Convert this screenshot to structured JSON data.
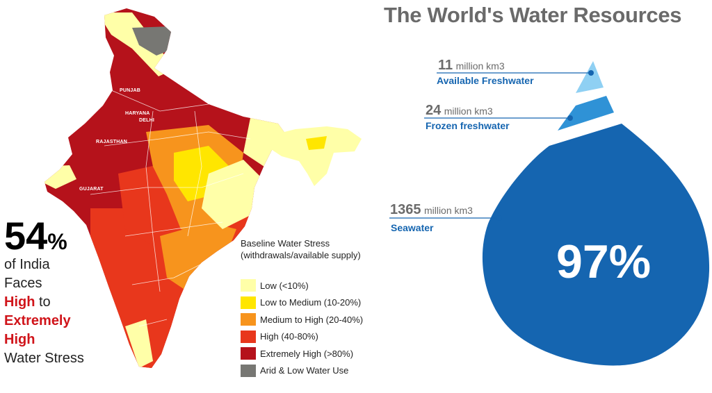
{
  "colors": {
    "low": "#ffffa8",
    "low_medium": "#ffe600",
    "medium_high": "#f7941d",
    "high": "#e8371c",
    "extremely_high": "#b5121b",
    "arid": "#777773",
    "drop_blue": "#1565b0",
    "frozen_blue": "#2f92d6",
    "fresh_blue": "#8fd0f3",
    "title_grey": "#6a6a6a",
    "highlight_red": "#d0141a"
  },
  "india_panel": {
    "state_labels": [
      "PUNJAB",
      "HARYANA",
      "DELHI",
      "RAJASTHAN",
      "GUJARAT"
    ],
    "stat": {
      "number": "54",
      "percent_sign": "%",
      "line1": "of India",
      "line2": "Faces",
      "highlight1": "High",
      "line3_suffix": "to",
      "highlight2": "Extremely",
      "highlight3": "High",
      "line4": "Water Stress"
    },
    "legend": {
      "title_line1": "Baseline Water Stress",
      "title_line2": "(withdrawals/available supply)",
      "items": [
        {
          "label": "Low (<10%)",
          "color": "#ffffa8"
        },
        {
          "label": "Low to Medium (10-20%)",
          "color": "#ffe600"
        },
        {
          "label": "Medium to High (20-40%)",
          "color": "#f7941d"
        },
        {
          "label": "High (40-80%)",
          "color": "#e8371c"
        },
        {
          "label": "Extremely High (>80%)",
          "color": "#b5121b"
        },
        {
          "label": "Arid & Low Water Use",
          "color": "#777773"
        }
      ]
    }
  },
  "water_panel": {
    "title": "The World's Water Resources",
    "items": [
      {
        "amount": "11",
        "unit": "million km3",
        "name": "Available Freshwater"
      },
      {
        "amount": "24",
        "unit": "million km3",
        "name": "Frozen freshwater"
      },
      {
        "amount": "1365",
        "unit": "million km3",
        "name": "Seawater"
      }
    ],
    "drop_percent": "97%"
  }
}
